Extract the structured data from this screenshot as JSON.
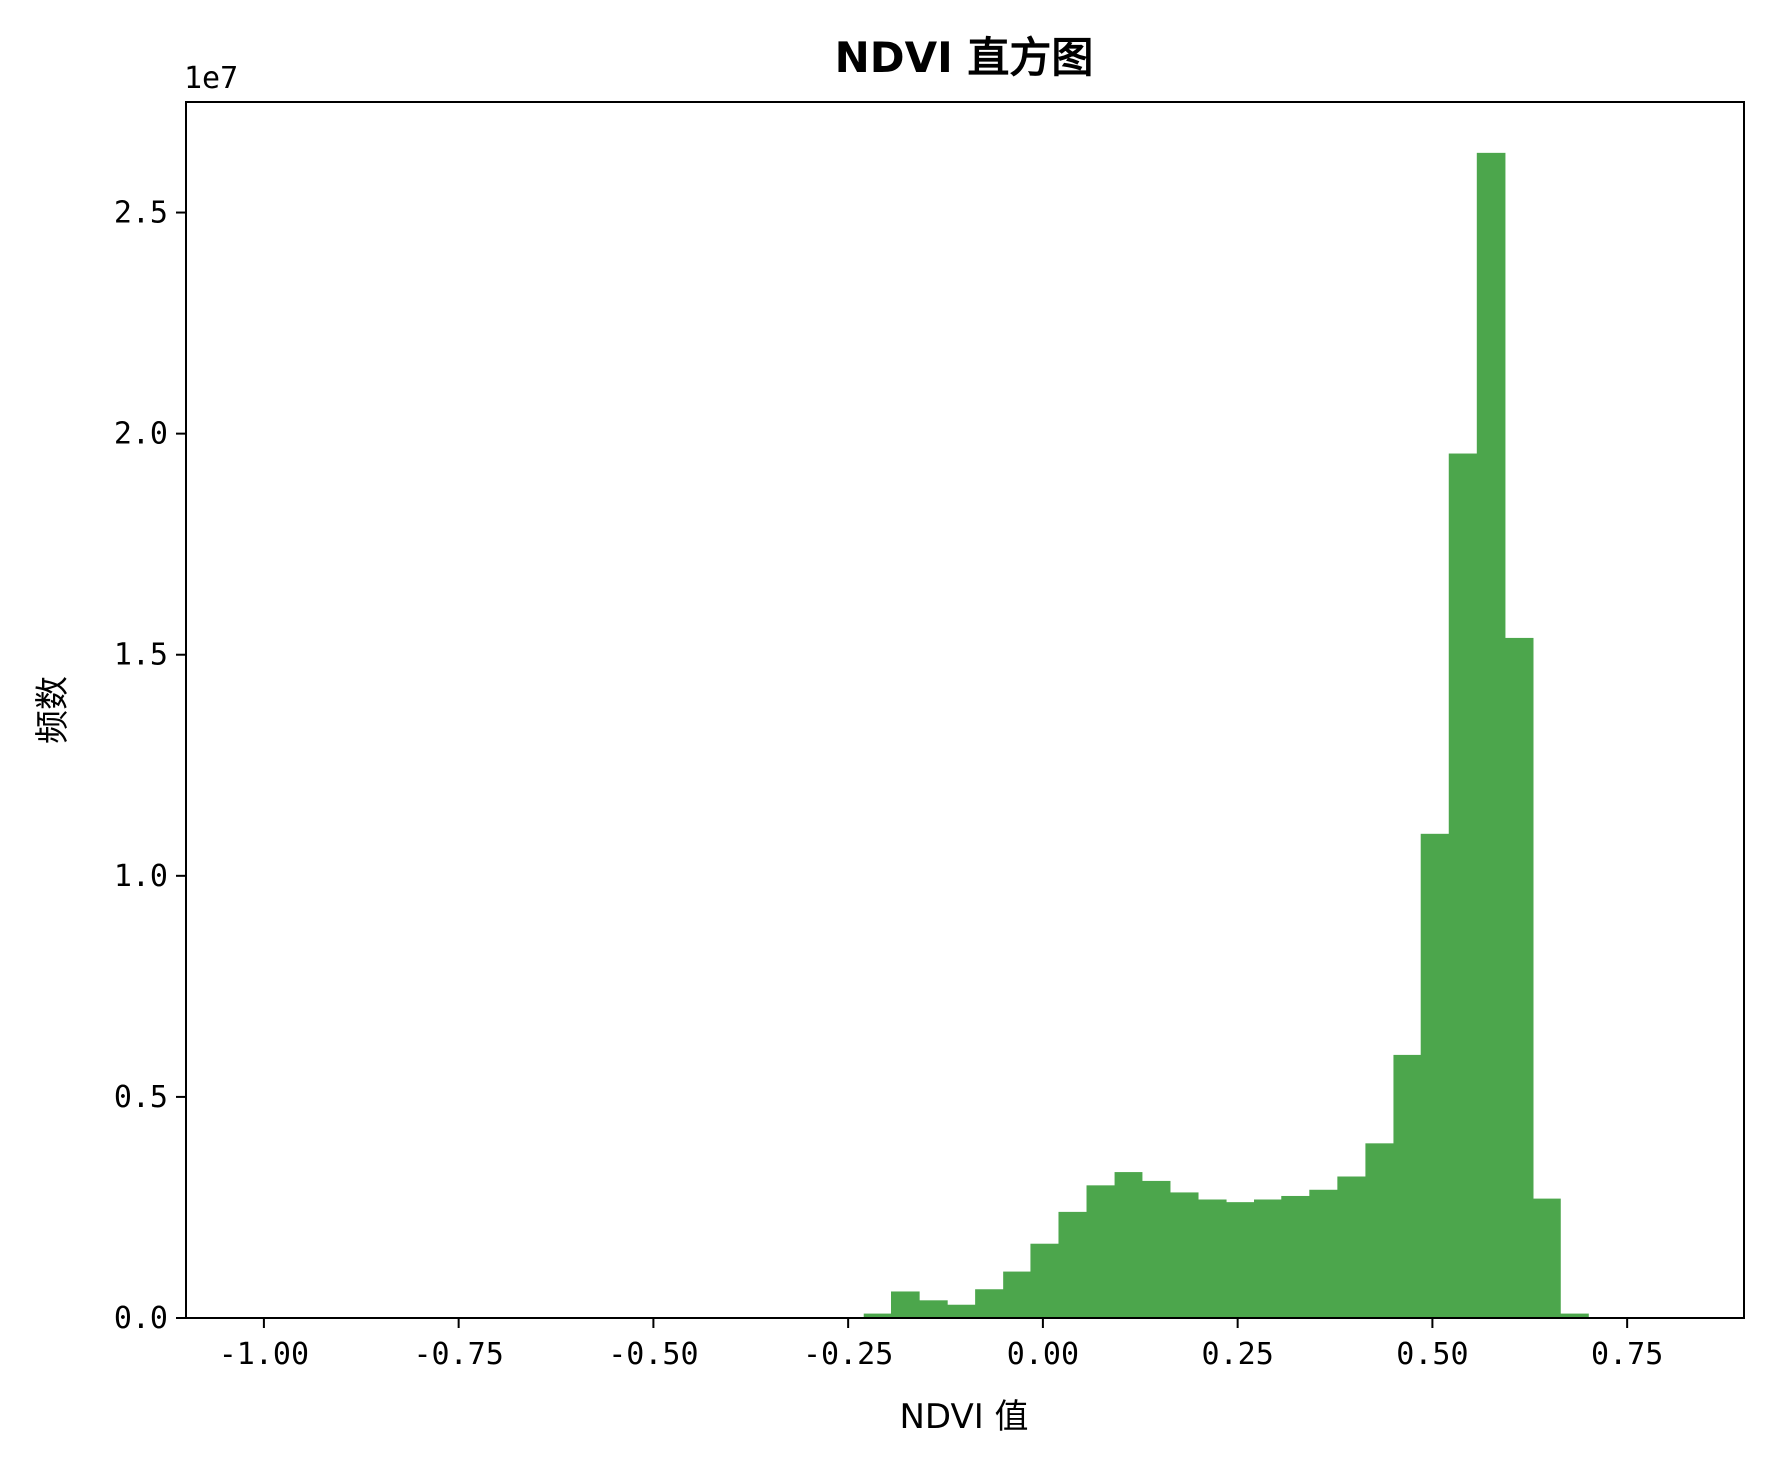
{
  "chart_data": {
    "type": "bar",
    "title": "NDVI 直方图",
    "xlabel": "NDVI 值",
    "ylabel": "频数",
    "y_offset_label": "1e7",
    "y_scale": 10000000,
    "xlim": [
      -1.1,
      0.9
    ],
    "ylim": [
      0,
      2.75
    ],
    "xticks": [
      -1.0,
      -0.75,
      -0.5,
      -0.25,
      0.0,
      0.25,
      0.5,
      0.75
    ],
    "xtick_labels": [
      "-1.00",
      "-0.75",
      "-0.50",
      "-0.25",
      "0.00",
      "0.25",
      "0.50",
      "0.75"
    ],
    "yticks": [
      0.0,
      0.5,
      1.0,
      1.5,
      2.0,
      2.5
    ],
    "ytick_labels": [
      "0.0",
      "0.5",
      "1.0",
      "1.5",
      "2.0",
      "2.5"
    ],
    "bar_color": "#4ca64c",
    "grid": false,
    "bins": [
      {
        "x0": -0.23,
        "x1": -0.195,
        "value": 0.01
      },
      {
        "x0": -0.195,
        "x1": -0.159,
        "value": 0.06
      },
      {
        "x0": -0.159,
        "x1": -0.123,
        "value": 0.04
      },
      {
        "x0": -0.123,
        "x1": -0.087,
        "value": 0.03
      },
      {
        "x0": -0.087,
        "x1": -0.051,
        "value": 0.065
      },
      {
        "x0": -0.051,
        "x1": -0.016,
        "value": 0.105
      },
      {
        "x0": -0.016,
        "x1": 0.02,
        "value": 0.168
      },
      {
        "x0": 0.02,
        "x1": 0.056,
        "value": 0.24
      },
      {
        "x0": 0.056,
        "x1": 0.092,
        "value": 0.3
      },
      {
        "x0": 0.092,
        "x1": 0.127,
        "value": 0.33
      },
      {
        "x0": 0.127,
        "x1": 0.163,
        "value": 0.31
      },
      {
        "x0": 0.163,
        "x1": 0.199,
        "value": 0.284
      },
      {
        "x0": 0.199,
        "x1": 0.235,
        "value": 0.268
      },
      {
        "x0": 0.235,
        "x1": 0.271,
        "value": 0.262
      },
      {
        "x0": 0.271,
        "x1": 0.306,
        "value": 0.268
      },
      {
        "x0": 0.306,
        "x1": 0.342,
        "value": 0.276
      },
      {
        "x0": 0.342,
        "x1": 0.378,
        "value": 0.29
      },
      {
        "x0": 0.378,
        "x1": 0.414,
        "value": 0.32
      },
      {
        "x0": 0.414,
        "x1": 0.45,
        "value": 0.395
      },
      {
        "x0": 0.45,
        "x1": 0.485,
        "value": 0.595
      },
      {
        "x0": 0.485,
        "x1": 0.521,
        "value": 1.095
      },
      {
        "x0": 0.521,
        "x1": 0.557,
        "value": 1.955
      },
      {
        "x0": 0.557,
        "x1": 0.593,
        "value": 2.635
      },
      {
        "x0": 0.593,
        "x1": 0.629,
        "value": 1.538
      },
      {
        "x0": 0.629,
        "x1": 0.664,
        "value": 0.27
      },
      {
        "x0": 0.664,
        "x1": 0.7,
        "value": 0.01
      }
    ]
  }
}
